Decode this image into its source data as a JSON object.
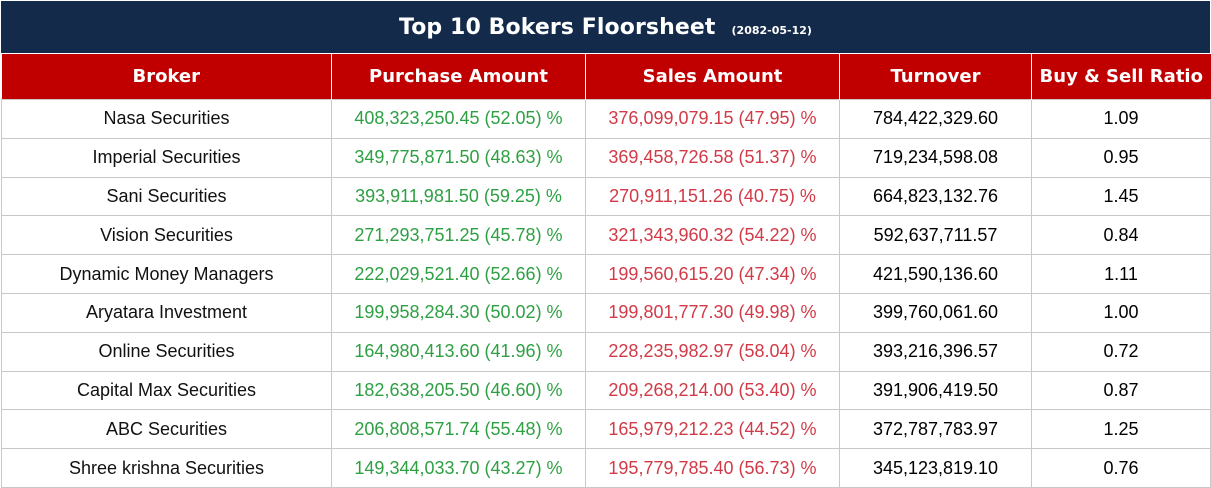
{
  "title": "Top 10 Bokers Floorsheet",
  "date": "(2082-05-12)",
  "colors": {
    "title_bg": "#132a4a",
    "header_bg": "#c00000",
    "purchase_text": "#2ea043",
    "sales_text": "#d23a47"
  },
  "columns": {
    "broker": "Broker",
    "purchase": "Purchase Amount",
    "sales": "Sales Amount",
    "turnover": "Turnover",
    "ratio": "Buy & Sell Ratio"
  },
  "rows": [
    {
      "broker": "Nasa Securities",
      "purchase": "408,323,250.45 (52.05) %",
      "sales": "376,099,079.15 (47.95) %",
      "turnover": "784,422,329.60",
      "ratio": "1.09"
    },
    {
      "broker": "Imperial Securities",
      "purchase": "349,775,871.50 (48.63) %",
      "sales": "369,458,726.58 (51.37) %",
      "turnover": "719,234,598.08",
      "ratio": "0.95"
    },
    {
      "broker": "Sani Securities",
      "purchase": "393,911,981.50 (59.25) %",
      "sales": "270,911,151.26 (40.75) %",
      "turnover": "664,823,132.76",
      "ratio": "1.45"
    },
    {
      "broker": "Vision Securities",
      "purchase": "271,293,751.25 (45.78) %",
      "sales": "321,343,960.32 (54.22) %",
      "turnover": "592,637,711.57",
      "ratio": "0.84"
    },
    {
      "broker": "Dynamic Money Managers",
      "purchase": "222,029,521.40 (52.66) %",
      "sales": "199,560,615.20 (47.34) %",
      "turnover": "421,590,136.60",
      "ratio": "1.11"
    },
    {
      "broker": "Aryatara Investment",
      "purchase": "199,958,284.30 (50.02) %",
      "sales": "199,801,777.30 (49.98) %",
      "turnover": "399,760,061.60",
      "ratio": "1.00"
    },
    {
      "broker": "Online Securities",
      "purchase": "164,980,413.60 (41.96) %",
      "sales": "228,235,982.97 (58.04) %",
      "turnover": "393,216,396.57",
      "ratio": "0.72"
    },
    {
      "broker": "Capital Max Securities",
      "purchase": "182,638,205.50 (46.60) %",
      "sales": "209,268,214.00 (53.40) %",
      "turnover": "391,906,419.50",
      "ratio": "0.87"
    },
    {
      "broker": "ABC Securities",
      "purchase": "206,808,571.74 (55.48) %",
      "sales": "165,979,212.23 (44.52) %",
      "turnover": "372,787,783.97",
      "ratio": "1.25"
    },
    {
      "broker": "Shree krishna Securities",
      "purchase": "149,344,033.70 (43.27) %",
      "sales": "195,779,785.40 (56.73) %",
      "turnover": "345,123,819.10",
      "ratio": "0.76"
    }
  ]
}
